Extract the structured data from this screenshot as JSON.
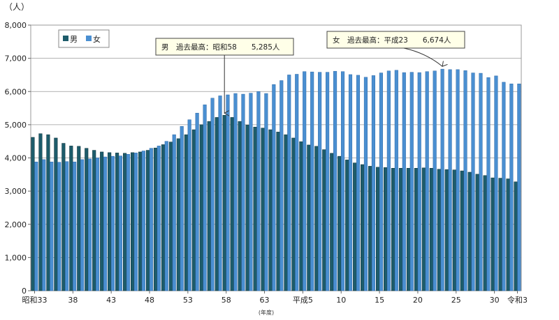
{
  "chart_data": {
    "type": "bar",
    "unit_label": "（人）",
    "xlabel": "(年度)",
    "ylim": [
      0,
      8000
    ],
    "yticks": [
      "0",
      "1,000",
      "2,000",
      "3,000",
      "4,000",
      "5,000",
      "6,000",
      "7,000",
      "8,000"
    ],
    "grid": true,
    "legend_position": "top-left",
    "x_tick_labels": [
      {
        "index": 0,
        "label": "昭和33"
      },
      {
        "index": 5,
        "label": "38"
      },
      {
        "index": 10,
        "label": "43"
      },
      {
        "index": 15,
        "label": "48"
      },
      {
        "index": 20,
        "label": "53"
      },
      {
        "index": 25,
        "label": "58"
      },
      {
        "index": 30,
        "label": "63"
      },
      {
        "index": 35,
        "label": "平成5"
      },
      {
        "index": 40,
        "label": "10"
      },
      {
        "index": 45,
        "label": "15"
      },
      {
        "index": 50,
        "label": "20"
      },
      {
        "index": 55,
        "label": "25"
      },
      {
        "index": 60,
        "label": "30"
      },
      {
        "index": 63,
        "label": "令和3"
      }
    ],
    "series": [
      {
        "name": "男",
        "color": "#1d5c6b",
        "values": [
          4620,
          4730,
          4700,
          4600,
          4440,
          4360,
          4350,
          4290,
          4230,
          4180,
          4160,
          4150,
          4140,
          4160,
          4180,
          4230,
          4300,
          4400,
          4480,
          4580,
          4700,
          4850,
          5000,
          5100,
          5220,
          5285,
          5220,
          5100,
          4990,
          4930,
          4900,
          4850,
          4780,
          4700,
          4600,
          4490,
          4390,
          4350,
          4250,
          4140,
          4050,
          3940,
          3850,
          3800,
          3750,
          3720,
          3710,
          3690,
          3690,
          3690,
          3690,
          3700,
          3690,
          3660,
          3650,
          3640,
          3610,
          3570,
          3510,
          3470,
          3400,
          3390,
          3370,
          3280
        ]
      },
      {
        "name": "女",
        "color": "#4a8fd1",
        "values": [
          3880,
          3950,
          3880,
          3870,
          3890,
          3880,
          3950,
          3970,
          4000,
          4030,
          4050,
          4060,
          4110,
          4150,
          4210,
          4290,
          4360,
          4500,
          4700,
          4950,
          5150,
          5350,
          5600,
          5800,
          5870,
          5900,
          5940,
          5920,
          5950,
          6000,
          5940,
          6210,
          6330,
          6500,
          6520,
          6600,
          6590,
          6580,
          6580,
          6610,
          6600,
          6510,
          6490,
          6430,
          6480,
          6560,
          6620,
          6640,
          6570,
          6580,
          6570,
          6600,
          6620,
          6674,
          6660,
          6660,
          6630,
          6560,
          6550,
          6420,
          6470,
          6280,
          6230,
          6230
        ]
      }
    ],
    "annotations": [
      {
        "text": "男　過去最高：昭和58　　5,285人",
        "series": 0,
        "index": 25
      },
      {
        "text": "女　過去最高：平成23　　6,674人",
        "series": 1,
        "index": 53
      }
    ]
  }
}
